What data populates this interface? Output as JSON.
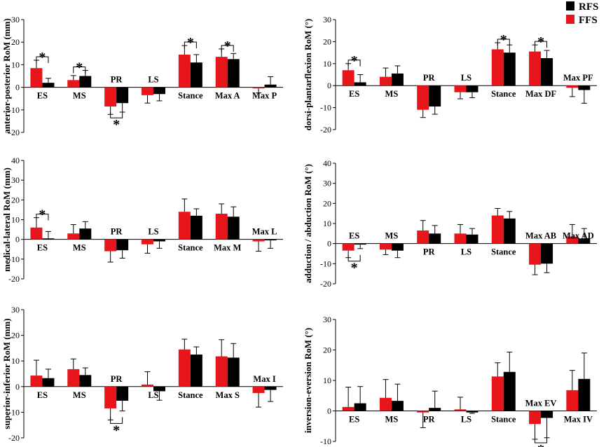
{
  "legend": {
    "items": [
      {
        "name": "RFS",
        "color": "#000000"
      },
      {
        "name": "FFS",
        "color": "#e8151b"
      }
    ]
  },
  "chart_data": [
    {
      "type": "bar",
      "ylabel": "anterior-posterior RoM (mm)",
      "ylim": [
        -20,
        30
      ],
      "ticks": [
        -20,
        -10,
        0,
        10,
        20,
        30
      ],
      "categories": [
        "ES",
        "MS",
        "PR",
        "LS",
        "Stance",
        "Max A",
        "Max P"
      ],
      "label_pos": [
        "below",
        "below",
        "above",
        "above",
        "below",
        "below",
        "below"
      ],
      "series": [
        {
          "name": "FFS",
          "color": "#e8151b",
          "values": [
            8.5,
            3.2,
            -8.5,
            -3.5,
            14.5,
            13.5,
            -0.5
          ],
          "errors": [
            3.5,
            2.0,
            3.5,
            3.5,
            4.0,
            3.5,
            2.0
          ]
        },
        {
          "name": "RFS",
          "color": "#000000",
          "values": [
            2.0,
            5.0,
            -7.0,
            -3.0,
            11.0,
            12.5,
            1.2
          ],
          "errors": [
            2.0,
            2.5,
            4.0,
            3.0,
            3.5,
            2.5,
            3.5
          ]
        }
      ],
      "significance": [
        {
          "category": "ES",
          "side": "top",
          "label": "*"
        },
        {
          "category": "MS",
          "side": "top",
          "label": "*"
        },
        {
          "category": "PR",
          "side": "bottom",
          "label": "*"
        },
        {
          "category": "Stance",
          "side": "top",
          "label": "*"
        },
        {
          "category": "Max A",
          "side": "top",
          "label": "*"
        }
      ]
    },
    {
      "type": "bar",
      "ylabel": "dorsi-plantarflexion RoM (°)",
      "ylim": [
        -20,
        30
      ],
      "ticks": [
        -20,
        -10,
        0,
        10,
        20,
        30
      ],
      "categories": [
        "ES",
        "MS",
        "PR",
        "LS",
        "Stance",
        "Max DF",
        "Max PF"
      ],
      "label_pos": [
        "below",
        "below",
        "above",
        "above",
        "below",
        "below",
        "above"
      ],
      "series": [
        {
          "name": "FFS",
          "color": "#e8151b",
          "values": [
            7.0,
            4.0,
            -11.0,
            -3.0,
            16.5,
            15.5,
            -1.0
          ],
          "errors": [
            3.0,
            4.0,
            3.5,
            3.0,
            3.0,
            3.0,
            4.0
          ]
        },
        {
          "name": "RFS",
          "color": "#000000",
          "values": [
            1.5,
            5.5,
            -9.5,
            -3.0,
            15.0,
            12.5,
            -2.0
          ],
          "errors": [
            3.5,
            3.5,
            3.5,
            2.5,
            3.5,
            3.5,
            6.0
          ]
        }
      ],
      "significance": [
        {
          "category": "ES",
          "side": "top",
          "label": "*"
        },
        {
          "category": "Stance",
          "side": "top",
          "label": "*"
        },
        {
          "category": "Max DF",
          "side": "top",
          "label": "*"
        }
      ]
    },
    {
      "type": "bar",
      "ylabel": "medical-lateral RoM (mm)",
      "ylim": [
        -20,
        40
      ],
      "ticks": [
        -20,
        -10,
        0,
        10,
        20,
        30,
        40
      ],
      "categories": [
        "ES",
        "MS",
        "PR",
        "LS",
        "Stance",
        "Max M",
        "Max L"
      ],
      "label_pos": [
        "below",
        "below",
        "above",
        "above",
        "below",
        "below",
        "above"
      ],
      "series": [
        {
          "name": "FFS",
          "color": "#e8151b",
          "values": [
            6.0,
            3.0,
            -6.0,
            -2.5,
            14.0,
            13.0,
            -1.0
          ],
          "errors": [
            5.0,
            4.5,
            5.5,
            4.5,
            6.5,
            5.0,
            5.0
          ]
        },
        {
          "name": "RFS",
          "color": "#000000",
          "values": [
            0.5,
            5.5,
            -5.5,
            -1.0,
            12.0,
            11.5,
            -0.5
          ],
          "errors": [
            3.5,
            3.5,
            4.0,
            3.5,
            3.5,
            5.0,
            4.0
          ]
        }
      ],
      "significance": [
        {
          "category": "ES",
          "side": "top",
          "label": "*"
        }
      ]
    },
    {
      "type": "bar",
      "ylabel": "adduction / abduction RoM (°)",
      "ylim": [
        -20,
        40
      ],
      "ticks": [
        -20,
        -10,
        0,
        10,
        20,
        30,
        40
      ],
      "categories": [
        "ES",
        "MS",
        "PR",
        "LS",
        "Stance",
        "Max AB",
        "Max AD"
      ],
      "label_pos": [
        "above",
        "above",
        "below",
        "below",
        "below",
        "above",
        "above"
      ],
      "series": [
        {
          "name": "FFS",
          "color": "#e8151b",
          "values": [
            -3.5,
            -3.0,
            6.5,
            5.0,
            14.0,
            -10.5,
            3.5
          ],
          "errors": [
            3.5,
            2.5,
            5.0,
            4.5,
            3.5,
            5.0,
            6.0
          ]
        },
        {
          "name": "RFS",
          "color": "#000000",
          "values": [
            -0.5,
            -3.5,
            5.0,
            4.5,
            12.5,
            -10.0,
            2.5
          ],
          "errors": [
            2.0,
            3.5,
            4.0,
            3.0,
            3.5,
            4.5,
            5.0
          ]
        }
      ],
      "significance": [
        {
          "category": "ES",
          "side": "bottom",
          "label": "*"
        }
      ]
    },
    {
      "type": "bar",
      "ylabel": "superior-inferior RoM (mm)",
      "ylim": [
        -20,
        30
      ],
      "ticks": [
        -20,
        -10,
        0,
        10,
        20,
        30
      ],
      "categories": [
        "ES",
        "MS",
        "PR",
        "LS",
        "Stance",
        "Max S",
        "Max I"
      ],
      "label_pos": [
        "below",
        "below",
        "above",
        "below",
        "below",
        "below",
        "above"
      ],
      "series": [
        {
          "name": "FFS",
          "color": "#e8151b",
          "values": [
            4.3,
            6.8,
            -8.5,
            0.8,
            14.5,
            11.8,
            -2.5
          ],
          "errors": [
            6.0,
            4.0,
            4.5,
            5.0,
            4.0,
            6.5,
            5.5
          ]
        },
        {
          "name": "RFS",
          "color": "#000000",
          "values": [
            3.3,
            4.5,
            -5.5,
            -1.8,
            12.5,
            11.3,
            -1.3
          ],
          "errors": [
            3.5,
            2.8,
            4.0,
            3.5,
            3.0,
            5.5,
            4.5
          ]
        }
      ],
      "significance": [
        {
          "category": "PR",
          "side": "bottom",
          "label": "*"
        }
      ]
    },
    {
      "type": "bar",
      "ylabel": "inversion-eversion RoM (°)",
      "ylim": [
        -10,
        30
      ],
      "ticks": [
        -10,
        0,
        10,
        20,
        30
      ],
      "categories": [
        "ES",
        "MS",
        "PR",
        "LS",
        "Stance",
        "Max EV",
        "Max IV"
      ],
      "label_pos": [
        "below",
        "below",
        "below",
        "below",
        "below",
        "above",
        "below"
      ],
      "series": [
        {
          "name": "FFS",
          "color": "#e8151b",
          "values": [
            1.3,
            4.3,
            -0.5,
            0.5,
            11.3,
            -4.3,
            6.8
          ],
          "errors": [
            6.5,
            6.0,
            5.0,
            4.0,
            4.5,
            5.0,
            6.5
          ]
        },
        {
          "name": "RFS",
          "color": "#000000",
          "values": [
            2.5,
            3.3,
            1.0,
            -0.5,
            12.8,
            -2.3,
            10.5
          ],
          "errors": [
            5.5,
            5.5,
            5.5,
            0.3,
            6.5,
            6.5,
            8.5
          ]
        }
      ],
      "significance": [
        {
          "category": "Max EV",
          "side": "bottom",
          "label": "*"
        }
      ]
    }
  ]
}
